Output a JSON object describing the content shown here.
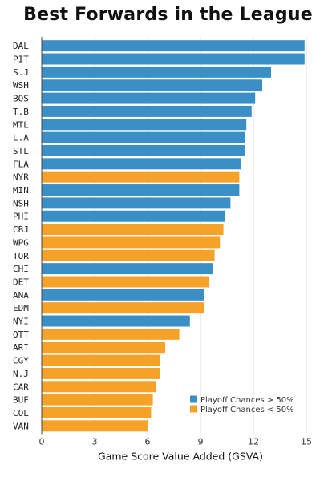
{
  "chart_data": {
    "type": "bar",
    "orientation": "horizontal",
    "title": "Best Forwards in the League",
    "xlabel": "Game Score Value Added (GSVA)",
    "ylabel": "",
    "xlim": [
      0,
      15
    ],
    "xticks": [
      0,
      3,
      6,
      9,
      12,
      15
    ],
    "grid": true,
    "legend_position": "bottom-right",
    "legend": [
      {
        "name": "Playoff Chances > 50%",
        "color": "#3a8fc6"
      },
      {
        "name": "Playoff Chances < 50%",
        "color": "#f6a128"
      }
    ],
    "categories": [
      "DAL",
      "PIT",
      "S.J",
      "WSH",
      "BOS",
      "T.B",
      "MTL",
      "L.A",
      "STL",
      "FLA",
      "NYR",
      "MIN",
      "NSH",
      "PHI",
      "CBJ",
      "WPG",
      "TOR",
      "CHI",
      "DET",
      "ANA",
      "EDM",
      "NYI",
      "OTT",
      "ARI",
      "CGY",
      "N.J",
      "CAR",
      "BUF",
      "COL",
      "VAN"
    ],
    "values": [
      14.9,
      14.9,
      13.0,
      12.5,
      12.1,
      11.9,
      11.6,
      11.5,
      11.5,
      11.3,
      11.2,
      11.2,
      10.7,
      10.4,
      10.3,
      10.1,
      9.8,
      9.7,
      9.5,
      9.2,
      9.2,
      8.4,
      7.8,
      7.0,
      6.7,
      6.7,
      6.5,
      6.3,
      6.2,
      6.0
    ],
    "playoff_group": [
      ">50%",
      ">50%",
      ">50%",
      ">50%",
      ">50%",
      ">50%",
      ">50%",
      ">50%",
      ">50%",
      ">50%",
      "<50%",
      ">50%",
      ">50%",
      ">50%",
      "<50%",
      "<50%",
      "<50%",
      ">50%",
      "<50%",
      ">50%",
      "<50%",
      ">50%",
      "<50%",
      "<50%",
      "<50%",
      "<50%",
      "<50%",
      "<50%",
      "<50%",
      "<50%"
    ]
  }
}
